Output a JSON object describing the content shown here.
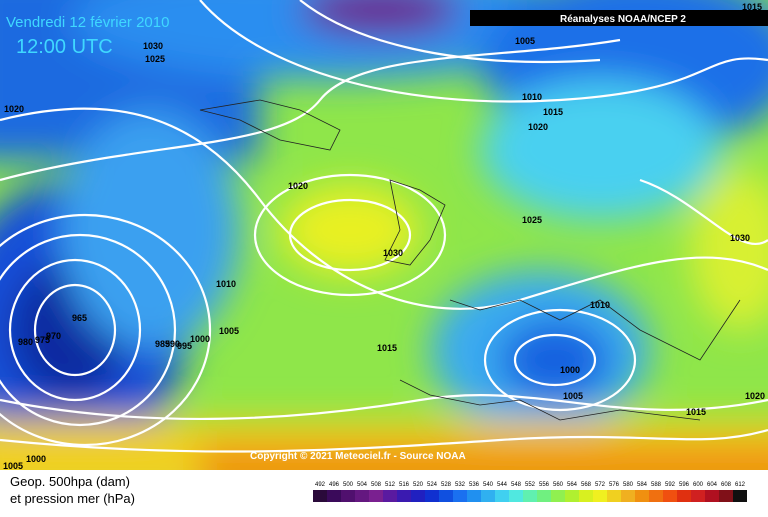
{
  "header": {
    "title": "Vendredi 12 février 2010",
    "time": "12:00 UTC",
    "source": "Réanalyses NOAA/NCEP 2"
  },
  "copyright": "Copyright © 2021 Meteociel.fr - Source NOAA",
  "legend": {
    "line1": "Geop. 500hpa (dam)",
    "line2": "et pression mer (hPa)",
    "scale": [
      "492",
      "496",
      "500",
      "504",
      "508",
      "512",
      "516",
      "520",
      "524",
      "528",
      "532",
      "536",
      "540",
      "544",
      "548",
      "552",
      "556",
      "560",
      "564",
      "568",
      "572",
      "576",
      "580",
      "584",
      "588",
      "592",
      "596",
      "600",
      "604",
      "608",
      "612"
    ]
  },
  "isobar_labels": [
    "1015",
    "1030",
    "1025",
    "1005",
    "1020",
    "1010",
    "1015",
    "1020",
    "1020",
    "1025",
    "1030",
    "1030",
    "1010",
    "1010",
    "1005",
    "965",
    "970",
    "975",
    "980",
    "985",
    "990",
    "995",
    "1000",
    "1015",
    "1000",
    "1005",
    "1015",
    "1020",
    "1000",
    "1005"
  ]
}
